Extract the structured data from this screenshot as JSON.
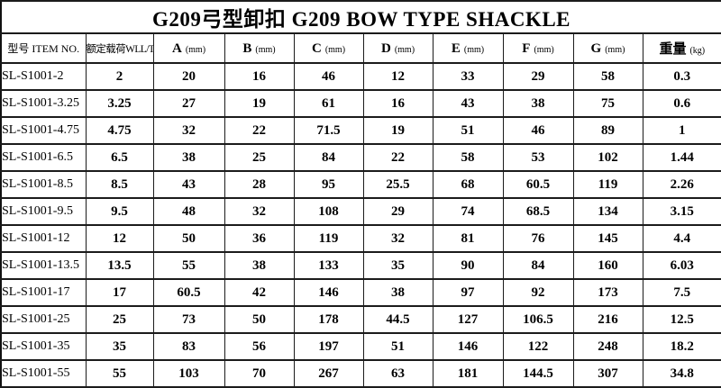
{
  "title": "G209弓型卸扣 G209 BOW TYPE SHACKLE",
  "colors": {
    "background": "#ffffff",
    "text": "#000000",
    "grid_line": "#1b1b1b"
  },
  "table": {
    "columns": [
      {
        "label": "型号 ITEM NO.",
        "unit": ""
      },
      {
        "label": "额定载荷WLL/T",
        "unit": ""
      },
      {
        "label": "A",
        "unit": "(mm)"
      },
      {
        "label": "B",
        "unit": "(mm)"
      },
      {
        "label": "C",
        "unit": "(mm)"
      },
      {
        "label": "D",
        "unit": "(mm)"
      },
      {
        "label": "E",
        "unit": "(mm)"
      },
      {
        "label": "F",
        "unit": "(mm)"
      },
      {
        "label": "G",
        "unit": "(mm)"
      },
      {
        "label": "重量",
        "unit": "(kg)"
      }
    ],
    "rows": [
      [
        "SL-S1001-2",
        "2",
        "20",
        "16",
        "46",
        "12",
        "33",
        "29",
        "58",
        "0.3"
      ],
      [
        "SL-S1001-3.25",
        "3.25",
        "27",
        "19",
        "61",
        "16",
        "43",
        "38",
        "75",
        "0.6"
      ],
      [
        "SL-S1001-4.75",
        "4.75",
        "32",
        "22",
        "71.5",
        "19",
        "51",
        "46",
        "89",
        "1"
      ],
      [
        "SL-S1001-6.5",
        "6.5",
        "38",
        "25",
        "84",
        "22",
        "58",
        "53",
        "102",
        "1.44"
      ],
      [
        "SL-S1001-8.5",
        "8.5",
        "43",
        "28",
        "95",
        "25.5",
        "68",
        "60.5",
        "119",
        "2.26"
      ],
      [
        "SL-S1001-9.5",
        "9.5",
        "48",
        "32",
        "108",
        "29",
        "74",
        "68.5",
        "134",
        "3.15"
      ],
      [
        "SL-S1001-12",
        "12",
        "50",
        "36",
        "119",
        "32",
        "81",
        "76",
        "145",
        "4.4"
      ],
      [
        "SL-S1001-13.5",
        "13.5",
        "55",
        "38",
        "133",
        "35",
        "90",
        "84",
        "160",
        "6.03"
      ],
      [
        "SL-S1001-17",
        "17",
        "60.5",
        "42",
        "146",
        "38",
        "97",
        "92",
        "173",
        "7.5"
      ],
      [
        "SL-S1001-25",
        "25",
        "73",
        "50",
        "178",
        "44.5",
        "127",
        "106.5",
        "216",
        "12.5"
      ],
      [
        "SL-S1001-35",
        "35",
        "83",
        "56",
        "197",
        "51",
        "146",
        "122",
        "248",
        "18.2"
      ],
      [
        "SL-S1001-55",
        "55",
        "103",
        "70",
        "267",
        "63",
        "181",
        "144.5",
        "307",
        "34.8"
      ]
    ]
  }
}
